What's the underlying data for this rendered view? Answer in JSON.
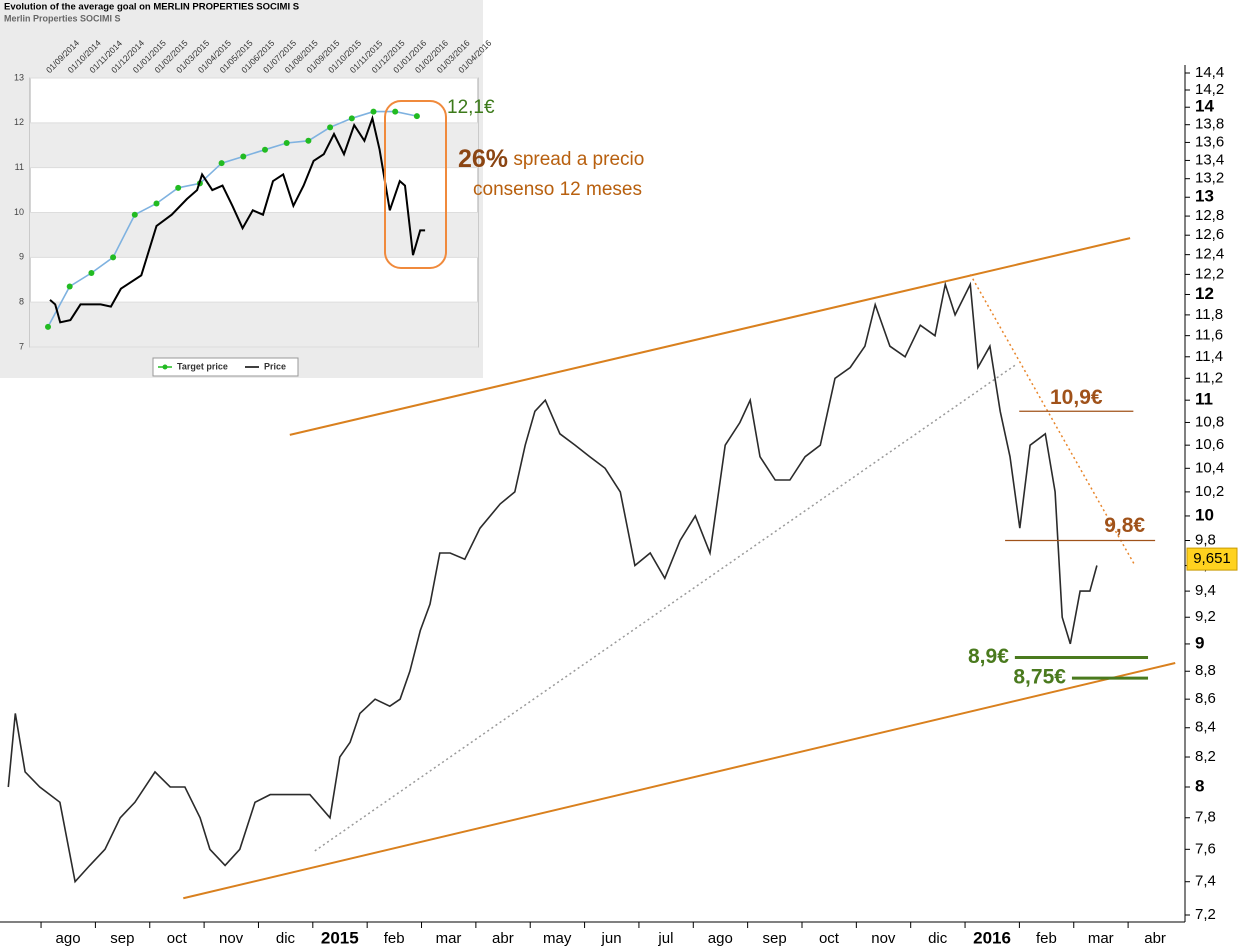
{
  "chart_data": [
    {
      "type": "line",
      "log_scale": true,
      "x": [
        -1.1,
        -0.97,
        -0.79,
        -0.52,
        -0.15,
        0.13,
        0.4,
        0.68,
        0.96,
        1.23,
        1.6,
        1.88,
        2.15,
        2.43,
        2.61,
        2.89,
        3.16,
        3.44,
        3.72,
        4.08,
        4.45,
        4.82,
        5.0,
        5.19,
        5.37,
        5.65,
        5.92,
        6.11,
        6.29,
        6.48,
        6.66,
        6.84,
        7.03,
        7.3,
        7.58,
        7.95,
        8.22,
        8.41,
        8.59,
        8.78,
        9.05,
        9.33,
        9.6,
        9.88,
        10.16,
        10.43,
        10.71,
        10.98,
        11.26,
        11.54,
        11.81,
        12.09,
        12.36,
        12.55,
        12.73,
        13.01,
        13.28,
        13.56,
        13.84,
        14.11,
        14.39,
        14.66,
        14.85,
        15.12,
        15.4,
        15.68,
        15.95,
        16.14,
        16.32,
        16.6,
        16.74,
        16.96,
        17.15,
        17.33,
        17.51,
        17.7,
        17.98,
        18.16,
        18.29,
        18.44,
        18.62,
        18.8,
        18.93
      ],
      "series": [
        {
          "color": "#2b2b2b",
          "values": [
            8.0,
            8.5,
            8.1,
            8.0,
            7.9,
            7.4,
            7.5,
            7.6,
            7.8,
            7.9,
            8.1,
            8.0,
            8.0,
            7.8,
            7.6,
            7.5,
            7.6,
            7.9,
            7.95,
            7.95,
            7.95,
            7.8,
            8.2,
            8.3,
            8.5,
            8.6,
            8.55,
            8.6,
            8.8,
            9.1,
            9.3,
            9.7,
            9.7,
            9.65,
            9.9,
            10.1,
            10.2,
            10.6,
            10.9,
            11.0,
            10.7,
            10.6,
            10.5,
            10.4,
            10.2,
            9.6,
            9.7,
            9.5,
            9.8,
            10.0,
            9.7,
            10.6,
            10.8,
            11.0,
            10.5,
            10.3,
            10.3,
            10.5,
            10.6,
            11.2,
            11.3,
            11.5,
            11.9,
            11.5,
            11.4,
            11.7,
            11.6,
            12.1,
            11.8,
            12.1,
            11.3,
            11.5,
            10.9,
            10.5,
            9.9,
            10.6,
            10.7,
            10.2,
            9.2,
            9.0,
            9.4,
            9.4,
            9.6
          ]
        }
      ],
      "xlim": [
        -1.16,
        20.55
      ],
      "xticks": [
        {
          "value": 0,
          "label": "ago"
        },
        {
          "value": 1,
          "label": "sep"
        },
        {
          "value": 2,
          "label": "oct"
        },
        {
          "value": 3,
          "label": "nov"
        },
        {
          "value": 4,
          "label": "dic"
        },
        {
          "value": 5,
          "label": "2015"
        },
        {
          "value": 6,
          "label": "feb"
        },
        {
          "value": 7,
          "label": "mar"
        },
        {
          "value": 8,
          "label": "abr"
        },
        {
          "value": 9,
          "label": "may"
        },
        {
          "value": 10,
          "label": "jun"
        },
        {
          "value": 11,
          "label": "jul"
        },
        {
          "value": 12,
          "label": "ago"
        },
        {
          "value": 13,
          "label": "sep"
        },
        {
          "value": 14,
          "label": "oct"
        },
        {
          "value": 15,
          "label": "nov"
        },
        {
          "value": 16,
          "label": "dic"
        },
        {
          "value": 17,
          "label": "2016"
        },
        {
          "value": 18,
          "label": "feb"
        },
        {
          "value": 19,
          "label": "mar"
        },
        {
          "value": 20,
          "label": "abr"
        }
      ],
      "ylim": [
        7.2,
        14.4
      ],
      "yticks": [
        {
          "value": 7.2,
          "label": "7,2"
        },
        {
          "value": 7.4,
          "label": "7,4"
        },
        {
          "value": 7.6,
          "label": "7,6"
        },
        {
          "value": 7.8,
          "label": "7,8"
        },
        8,
        {
          "value": 8.2,
          "label": "8,2"
        },
        {
          "value": 8.4,
          "label": "8,4"
        },
        {
          "value": 8.6,
          "label": "8,6"
        },
        {
          "value": 8.8,
          "label": "8,8"
        },
        9,
        {
          "value": 9.2,
          "label": "9,2"
        },
        {
          "value": 9.4,
          "label": "9,4"
        },
        {
          "value": 9.6,
          "label": "9,6"
        },
        {
          "value": 9.8,
          "label": "9,8"
        },
        10,
        {
          "value": 10.2,
          "label": "10,2"
        },
        {
          "value": 10.4,
          "label": "10,4"
        },
        {
          "value": 10.6,
          "label": "10,6"
        },
        {
          "value": 10.8,
          "label": "10,8"
        },
        11,
        {
          "value": 11.2,
          "label": "11,2"
        },
        {
          "value": 11.4,
          "label": "11,4"
        },
        {
          "value": 11.6,
          "label": "11,6"
        },
        {
          "value": 11.8,
          "label": "11,8"
        },
        12,
        {
          "value": 12.2,
          "label": "12,2"
        },
        {
          "value": 12.4,
          "label": "12,4"
        },
        {
          "value": 12.6,
          "label": "12,6"
        },
        {
          "value": 12.8,
          "label": "12,8"
        },
        13,
        {
          "value": 13.2,
          "label": "13,2"
        },
        {
          "value": 13.4,
          "label": "13,4"
        },
        {
          "value": 13.6,
          "label": "13,6"
        },
        {
          "value": 13.8,
          "label": "13,8"
        },
        14,
        {
          "value": 14.2,
          "label": "14,2"
        },
        {
          "value": 14.4,
          "label": "14,4"
        }
      ],
      "trend_lines": [
        {
          "color": "#d9801e",
          "dash": false,
          "x": [
            4.08,
            19.54
          ],
          "y": [
            10.69,
            12.57
          ]
        },
        {
          "color": "#d9801e",
          "dash": false,
          "x": [
            2.12,
            20.37
          ],
          "y": [
            7.3,
            8.86
          ]
        },
        {
          "color": "#999999",
          "dash": true,
          "x": [
            4.54,
            17.42
          ],
          "y": [
            7.59,
            11.32
          ]
        },
        {
          "color": "#e8852a",
          "dash": true,
          "x": [
            16.6,
            19.63
          ],
          "y": [
            12.2,
            9.6
          ]
        }
      ],
      "levels": [
        {
          "value": 10.9,
          "label": "10,9€",
          "x": [
            17.5,
            19.6
          ],
          "color": "#a0521a"
        },
        {
          "value": 9.8,
          "label": "9,8€",
          "x": [
            17.24,
            20.0
          ],
          "color": "#a0521a"
        },
        {
          "value": 8.9,
          "label": "8,9€",
          "x": [
            17.42,
            19.87
          ],
          "color": "#4a7a1e"
        },
        {
          "value": 8.75,
          "label": "8,75€",
          "x": [
            18.47,
            19.87
          ],
          "color": "#4a7a1e"
        }
      ],
      "last_price": {
        "value": 9.651,
        "label": "9,651"
      }
    },
    {
      "type": "line",
      "title": "Evolution of the average goal on MERLIN PROPERTIES SOCIMI S",
      "subtitle": "Merlin Properties SOCIMI S",
      "categories": [
        "01/09/2014",
        "01/10/2014",
        "01/11/2014",
        "01/12/2014",
        "01/01/2015",
        "01/02/2015",
        "01/03/2015",
        "01/04/2015",
        "01/05/2015",
        "01/06/2015",
        "01/07/2015",
        "01/08/2015",
        "01/09/2015",
        "01/10/2015",
        "01/11/2015",
        "01/12/2015",
        "01/01/2016",
        "01/02/2016",
        "01/03/2016",
        "01/04/2016"
      ],
      "series": [
        {
          "name": "Target price",
          "color": "#7fb2e0",
          "marker_color": "#22bb22",
          "values": [
            7.45,
            8.35,
            8.65,
            9.0,
            9.95,
            10.2,
            10.55,
            10.65,
            11.1,
            11.25,
            11.4,
            11.55,
            11.6,
            11.9,
            12.1,
            12.25,
            12.25,
            12.15,
            null,
            null
          ]
        },
        {
          "name": "Price",
          "color": "#000000",
          "x": [
            0.09,
            0.33,
            0.56,
            1.03,
            1.5,
            2.43,
            2.9,
            3.36,
            4.3,
            5.0,
            5.7,
            6.4,
            6.87,
            7.1,
            7.57,
            8.04,
            8.5,
            8.97,
            9.44,
            9.91,
            10.37,
            10.84,
            11.31,
            11.78,
            12.24,
            12.71,
            13.18,
            13.64,
            14.11,
            14.58,
            14.95,
            15.28,
            15.75,
            16.21,
            16.45,
            16.82,
            17.15,
            17.38
          ],
          "values": [
            8.05,
            7.95,
            7.55,
            7.6,
            7.95,
            7.95,
            7.9,
            8.3,
            8.6,
            9.7,
            9.95,
            10.3,
            10.5,
            10.85,
            10.5,
            10.6,
            10.15,
            9.65,
            10.05,
            9.95,
            10.7,
            10.85,
            10.15,
            10.6,
            11.15,
            11.3,
            11.75,
            11.3,
            11.95,
            11.6,
            12.1,
            11.4,
            10.05,
            10.7,
            10.6,
            9.05,
            9.6,
            9.6
          ]
        }
      ],
      "ylim": [
        7,
        13
      ],
      "yticks": [
        7,
        8,
        9,
        10,
        11,
        12,
        13
      ],
      "annotations": {
        "target": "12,1€",
        "spread_pct": "26%",
        "spread_text": " spread a precio",
        "spread_text2": "consenso 12 meses"
      }
    }
  ]
}
